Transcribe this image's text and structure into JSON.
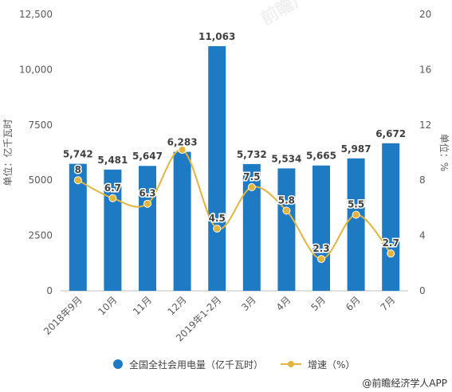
{
  "chart_data": {
    "type": "bar",
    "categories": [
      "2018年9月",
      "10月",
      "11月",
      "12月",
      "2019年1-2月",
      "3月",
      "4月",
      "5月",
      "6月",
      "7月"
    ],
    "series": [
      {
        "name": "全国全社会用电量（亿千瓦时）",
        "type": "bar",
        "axis": "left",
        "values": [
          5742,
          5481,
          5647,
          6283,
          11063,
          5732,
          5534,
          5665,
          5987,
          6672
        ],
        "labels": [
          "5,742",
          "5,481",
          "5,647",
          "6,283",
          "11,063",
          "5,732",
          "5,534",
          "5,665",
          "5,987",
          "6,672"
        ]
      },
      {
        "name": "增速（%）",
        "type": "line",
        "axis": "right",
        "values": [
          8,
          6.7,
          6.3,
          10.2,
          4.5,
          7.5,
          5.8,
          2.3,
          5.5,
          2.7
        ],
        "labels": [
          "8",
          "6.7",
          "6.3",
          "",
          "4.5",
          "7.5",
          "5.8",
          "2.3",
          "5.5",
          "2.7"
        ]
      }
    ],
    "ylabel": "单位：亿千瓦时",
    "y2label": "单位：%",
    "ylim": [
      0,
      12500
    ],
    "y2lim": [
      0,
      20
    ],
    "y_ticks": [
      "0",
      "2500",
      "5000",
      "7500",
      "10,000",
      "12,500"
    ],
    "y2_ticks": [
      "0",
      "4",
      "8",
      "12",
      "16",
      "20"
    ],
    "grid": false,
    "legend_position": "bottom",
    "colors": {
      "bar": "#1e7bc3",
      "line": "#e4b43a"
    }
  },
  "credit": "@前瞻经济学人APP",
  "watermark": "前瞻产业研究院"
}
